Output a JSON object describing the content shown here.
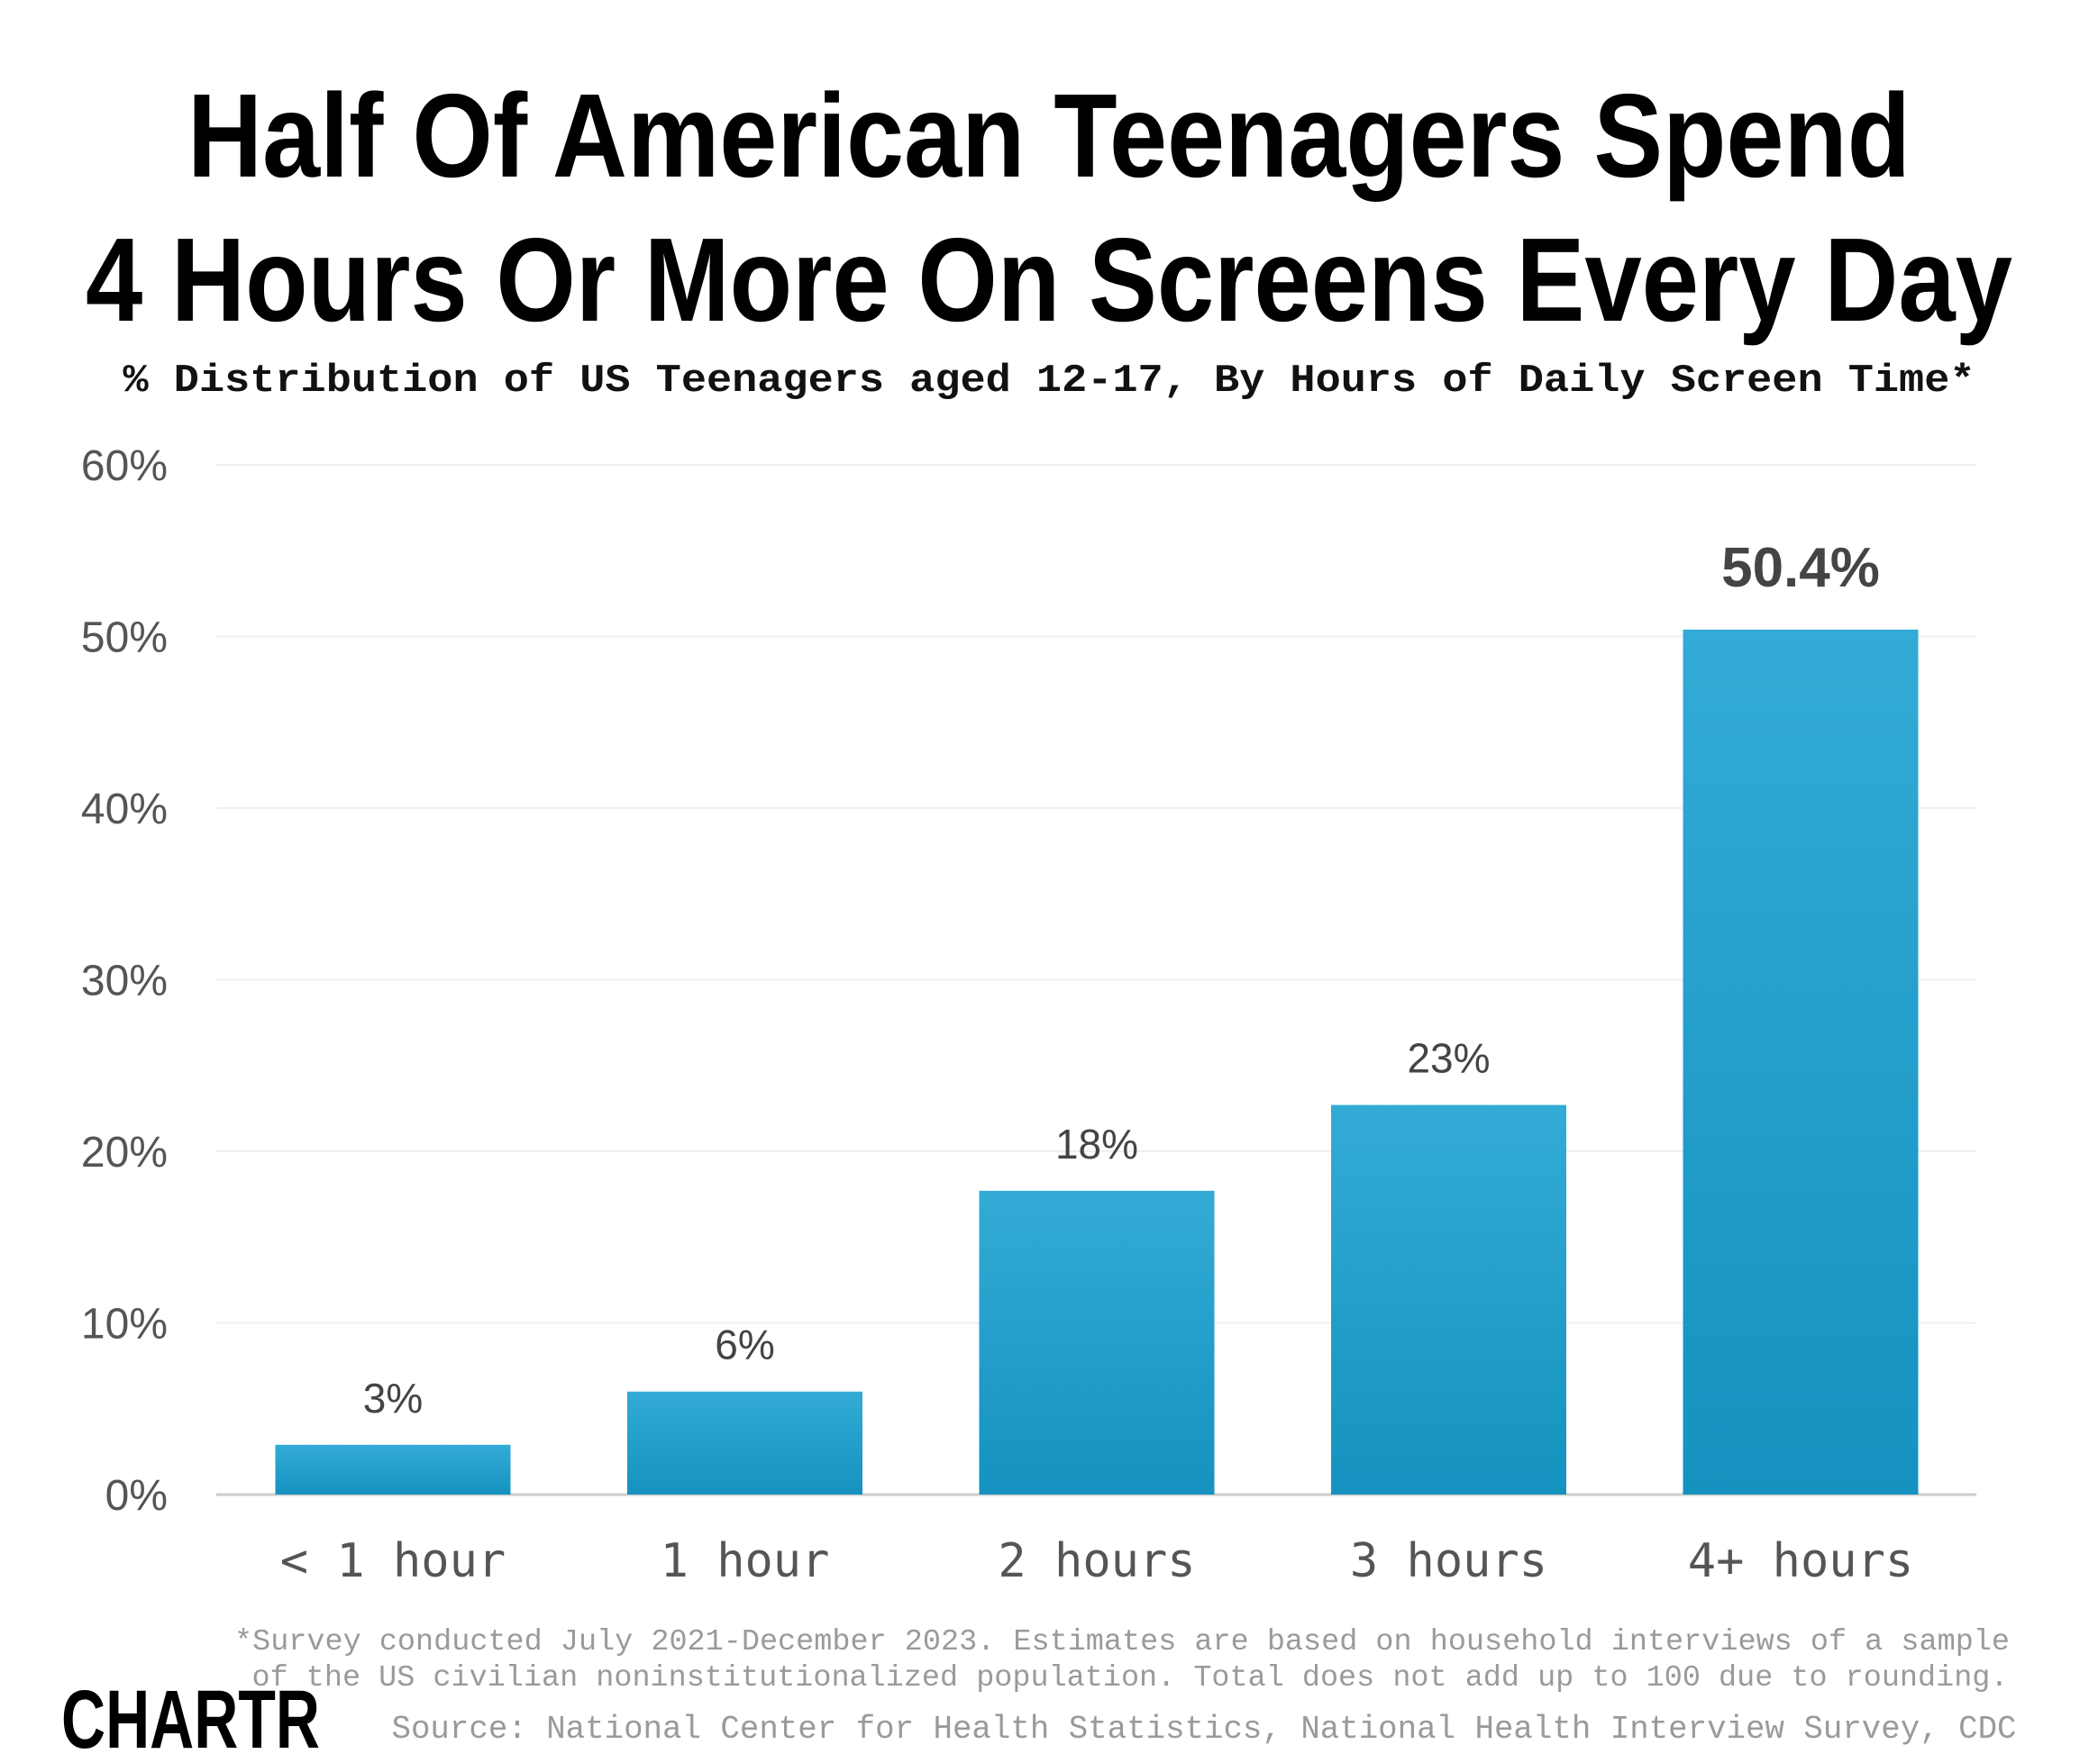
{
  "title_lines": [
    "Half Of American Teenagers Spend",
    "4 Hours Or More On Screens Every Day"
  ],
  "subtitle": "% Distribution of US Teenagers aged 12-17, By Hours of Daily Screen Time*",
  "footnote_lines": [
    "*Survey conducted July 2021-December 2023. Estimates are based on household interviews of a sample",
    "of the US civilian noninstitutionalized population. Total does not add up to 100 due to rounding."
  ],
  "source": "Source: National Center for Health Statistics, National Health Interview Survey, CDC",
  "logo": "CHARTR",
  "colors": {
    "bar_top": "#33abd6",
    "bar_bottom": "#1592bf",
    "grid": "#f0f0f0"
  },
  "chart_data": {
    "type": "bar",
    "categories": [
      "< 1 hour",
      "1 hour",
      "2 hours",
      "3 hours",
      "4+ hours"
    ],
    "values": [
      2.9,
      6.0,
      17.7,
      22.7,
      50.4
    ],
    "data_labels": [
      "3%",
      "6%",
      "18%",
      "23%",
      "50.4%"
    ],
    "yticks": [
      "0%",
      "10%",
      "20%",
      "30%",
      "40%",
      "50%",
      "60%"
    ],
    "ylim": [
      0,
      60
    ],
    "grid": true,
    "legend": "none"
  }
}
